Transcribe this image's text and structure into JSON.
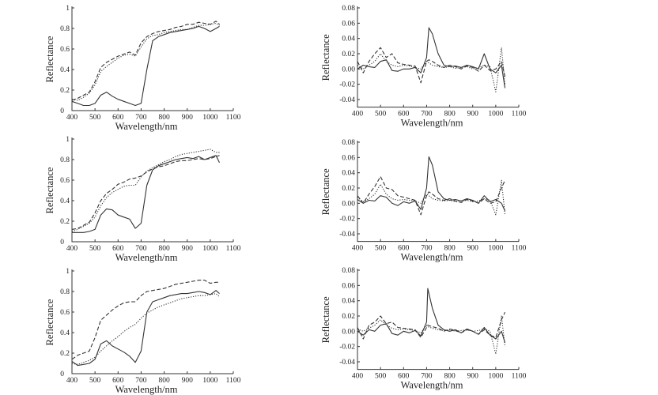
{
  "chart_data": [
    {
      "type": "line",
      "xlabel": "Wavelength/nm",
      "ylabel": "Reflectance",
      "xlim": [
        400,
        1100
      ],
      "ylim": [
        0,
        1
      ],
      "xticks": [
        "400",
        "500",
        "600",
        "700",
        "800",
        "900",
        "1000",
        "1100"
      ],
      "yticks": [
        "0",
        "0.2",
        "0.4",
        "0.6",
        "0.8",
        "1"
      ],
      "grid": false,
      "x": [
        400,
        425,
        450,
        475,
        500,
        525,
        550,
        575,
        600,
        625,
        650,
        675,
        700,
        725,
        750,
        775,
        800,
        825,
        850,
        875,
        900,
        925,
        950,
        975,
        1000,
        1025,
        1040
      ],
      "series": [
        {
          "style": "solid",
          "values": [
            0.09,
            0.07,
            0.05,
            0.05,
            0.07,
            0.15,
            0.18,
            0.14,
            0.11,
            0.09,
            0.07,
            0.05,
            0.07,
            0.4,
            0.68,
            0.72,
            0.74,
            0.76,
            0.77,
            0.78,
            0.79,
            0.8,
            0.82,
            0.8,
            0.77,
            0.8,
            0.82
          ]
        },
        {
          "style": "dashed",
          "values": [
            0.1,
            0.12,
            0.15,
            0.18,
            0.28,
            0.42,
            0.47,
            0.5,
            0.53,
            0.55,
            0.57,
            0.54,
            0.66,
            0.72,
            0.75,
            0.77,
            0.78,
            0.79,
            0.81,
            0.82,
            0.84,
            0.84,
            0.86,
            0.85,
            0.84,
            0.87,
            0.84
          ]
        },
        {
          "style": "dotted",
          "values": [
            0.11,
            0.1,
            0.13,
            0.17,
            0.25,
            0.38,
            0.43,
            0.47,
            0.51,
            0.54,
            0.55,
            0.53,
            0.62,
            0.7,
            0.73,
            0.74,
            0.76,
            0.77,
            0.78,
            0.79,
            0.79,
            0.81,
            0.83,
            0.83,
            0.84,
            0.85,
            0.83
          ]
        }
      ]
    },
    {
      "type": "line",
      "xlabel": "Wavelength/nm",
      "ylabel": "Reflectance",
      "xlim": [
        400,
        1100
      ],
      "ylim": [
        -0.05,
        0.08
      ],
      "xticks": [
        "400",
        "500",
        "600",
        "700",
        "800",
        "900",
        "1000",
        "1100"
      ],
      "yticks": [
        "-0.04",
        "-0.02",
        "0.00",
        "0.02",
        "0.04",
        "0.06",
        "0.08"
      ],
      "grid": false,
      "x": [
        400,
        425,
        450,
        475,
        500,
        525,
        550,
        575,
        600,
        625,
        650,
        675,
        700,
        710,
        725,
        750,
        775,
        800,
        825,
        850,
        875,
        900,
        925,
        950,
        975,
        1000,
        1025,
        1040
      ],
      "series": [
        {
          "style": "solid",
          "values": [
            0.0,
            0.005,
            0.003,
            0.002,
            0.01,
            0.012,
            -0.002,
            -0.003,
            0.0,
            0.0,
            0.002,
            -0.005,
            0.015,
            0.054,
            0.046,
            0.02,
            0.005,
            0.003,
            0.004,
            0.002,
            0.005,
            0.003,
            0.0,
            0.02,
            0.0,
            -0.005,
            0.005,
            -0.025
          ]
        },
        {
          "style": "dashed",
          "values": [
            0.01,
            -0.005,
            0.01,
            0.02,
            0.028,
            0.015,
            0.02,
            0.008,
            0.006,
            0.005,
            0.004,
            -0.018,
            0.01,
            0.012,
            0.01,
            0.005,
            0.002,
            0.005,
            0.003,
            0.0,
            0.004,
            0.002,
            -0.003,
            0.005,
            -0.002,
            0.0,
            0.01,
            -0.01
          ]
        },
        {
          "style": "dotted",
          "values": [
            0.005,
            0.0,
            0.005,
            0.01,
            0.02,
            0.01,
            0.005,
            0.003,
            0.005,
            0.004,
            0.002,
            0.0,
            0.01,
            0.008,
            0.005,
            0.003,
            0.002,
            0.003,
            0.001,
            0.002,
            0.003,
            0.0,
            0.002,
            0.005,
            0.003,
            -0.03,
            0.028,
            -0.02
          ]
        }
      ]
    },
    {
      "type": "line",
      "xlabel": "Wavelength/nm",
      "ylabel": "Reflectance",
      "xlim": [
        400,
        1100
      ],
      "ylim": [
        0,
        1
      ],
      "xticks": [
        "400",
        "500",
        "600",
        "700",
        "800",
        "900",
        "1000",
        "1100"
      ],
      "yticks": [
        "0",
        "0.2",
        "0.4",
        "0.6",
        "0.8",
        "1"
      ],
      "grid": false,
      "x": [
        400,
        425,
        450,
        475,
        500,
        525,
        550,
        575,
        600,
        625,
        650,
        675,
        700,
        725,
        750,
        775,
        800,
        825,
        850,
        875,
        900,
        925,
        950,
        975,
        1000,
        1025,
        1040
      ],
      "series": [
        {
          "style": "solid",
          "values": [
            0.09,
            0.09,
            0.09,
            0.1,
            0.12,
            0.26,
            0.32,
            0.31,
            0.26,
            0.24,
            0.22,
            0.13,
            0.18,
            0.55,
            0.7,
            0.74,
            0.76,
            0.78,
            0.8,
            0.81,
            0.82,
            0.81,
            0.83,
            0.8,
            0.82,
            0.84,
            0.77
          ]
        },
        {
          "style": "dashed",
          "values": [
            0.12,
            0.13,
            0.16,
            0.19,
            0.28,
            0.4,
            0.47,
            0.51,
            0.56,
            0.58,
            0.61,
            0.62,
            0.64,
            0.68,
            0.71,
            0.73,
            0.74,
            0.76,
            0.78,
            0.79,
            0.79,
            0.8,
            0.81,
            0.8,
            0.81,
            0.83,
            0.84
          ]
        },
        {
          "style": "dotted",
          "values": [
            0.1,
            0.12,
            0.15,
            0.18,
            0.24,
            0.35,
            0.43,
            0.48,
            0.51,
            0.54,
            0.55,
            0.55,
            0.63,
            0.69,
            0.72,
            0.75,
            0.78,
            0.8,
            0.83,
            0.85,
            0.86,
            0.87,
            0.88,
            0.89,
            0.9,
            0.87,
            0.87
          ]
        }
      ]
    },
    {
      "type": "line",
      "xlabel": "Wavelength/nm",
      "ylabel": "Reflectance",
      "xlim": [
        400,
        1100
      ],
      "ylim": [
        -0.05,
        0.08
      ],
      "xticks": [
        "400",
        "500",
        "600",
        "700",
        "800",
        "900",
        "1000",
        "1100"
      ],
      "yticks": [
        "-0.04",
        "-0.02",
        "0.00",
        "0.02",
        "0.04",
        "0.06",
        "0.08"
      ],
      "grid": false,
      "x": [
        400,
        425,
        450,
        475,
        500,
        525,
        550,
        575,
        600,
        625,
        650,
        675,
        700,
        710,
        725,
        750,
        775,
        800,
        825,
        850,
        875,
        900,
        925,
        950,
        975,
        1000,
        1025,
        1040
      ],
      "series": [
        {
          "style": "solid",
          "values": [
            0.005,
            0.0,
            0.004,
            0.003,
            0.01,
            0.008,
            0.0,
            -0.003,
            0.002,
            0.0,
            0.003,
            -0.008,
            0.02,
            0.061,
            0.05,
            0.015,
            0.006,
            0.004,
            0.005,
            0.003,
            0.006,
            0.004,
            0.0,
            0.01,
            0.002,
            0.005,
            0.0,
            -0.01
          ]
        },
        {
          "style": "dashed",
          "values": [
            0.01,
            0.0,
            0.012,
            0.022,
            0.035,
            0.02,
            0.018,
            0.01,
            0.008,
            0.006,
            0.004,
            -0.015,
            0.01,
            0.015,
            0.012,
            0.006,
            0.004,
            0.006,
            0.003,
            0.001,
            0.005,
            0.003,
            0.0,
            0.006,
            0.0,
            0.002,
            0.02,
            0.03
          ]
        },
        {
          "style": "dotted",
          "values": [
            0.008,
            0.002,
            0.006,
            0.012,
            0.025,
            0.012,
            0.006,
            0.004,
            0.005,
            0.004,
            0.003,
            0.0,
            0.012,
            0.01,
            0.006,
            0.004,
            0.003,
            0.004,
            0.002,
            0.003,
            0.004,
            0.002,
            0.003,
            0.006,
            0.004,
            -0.015,
            0.03,
            -0.015
          ]
        }
      ]
    },
    {
      "type": "line",
      "xlabel": "Wavelength/nm",
      "ylabel": "Reflectance",
      "xlim": [
        400,
        1100
      ],
      "ylim": [
        0,
        1
      ],
      "xticks": [
        "400",
        "500",
        "600",
        "700",
        "800",
        "900",
        "1000",
        "1100"
      ],
      "yticks": [
        "0",
        "0.2",
        "0.4",
        "0.6",
        "0.8",
        "1"
      ],
      "grid": false,
      "x": [
        400,
        425,
        450,
        475,
        500,
        525,
        550,
        575,
        600,
        625,
        650,
        675,
        700,
        725,
        750,
        775,
        800,
        825,
        850,
        875,
        900,
        925,
        950,
        975,
        1000,
        1025,
        1040
      ],
      "series": [
        {
          "style": "solid",
          "values": [
            0.12,
            0.08,
            0.09,
            0.1,
            0.14,
            0.29,
            0.32,
            0.27,
            0.24,
            0.21,
            0.17,
            0.11,
            0.22,
            0.6,
            0.7,
            0.72,
            0.74,
            0.76,
            0.77,
            0.78,
            0.78,
            0.79,
            0.8,
            0.79,
            0.77,
            0.81,
            0.78
          ]
        },
        {
          "style": "dashed",
          "values": [
            0.14,
            0.18,
            0.2,
            0.22,
            0.35,
            0.52,
            0.57,
            0.62,
            0.66,
            0.69,
            0.7,
            0.7,
            0.76,
            0.8,
            0.81,
            0.82,
            0.83,
            0.85,
            0.87,
            0.88,
            0.89,
            0.9,
            0.91,
            0.91,
            0.88,
            0.89,
            0.89
          ]
        },
        {
          "style": "dotted",
          "values": [
            0.1,
            0.09,
            0.11,
            0.13,
            0.16,
            0.22,
            0.27,
            0.32,
            0.36,
            0.41,
            0.45,
            0.48,
            0.54,
            0.59,
            0.62,
            0.65,
            0.67,
            0.69,
            0.71,
            0.73,
            0.74,
            0.75,
            0.76,
            0.76,
            0.77,
            0.78,
            0.75
          ]
        }
      ]
    },
    {
      "type": "line",
      "xlabel": "Wavelength/nm",
      "ylabel": "Reflectance",
      "xlim": [
        400,
        1100
      ],
      "ylim": [
        -0.05,
        0.08
      ],
      "xticks": [
        "400",
        "500",
        "600",
        "700",
        "800",
        "900",
        "1000",
        "1100"
      ],
      "yticks": [
        "-0.04",
        "-0.02",
        "0.00",
        "0.02",
        "0.04",
        "0.06",
        "0.08"
      ],
      "grid": false,
      "x": [
        400,
        425,
        450,
        475,
        500,
        525,
        550,
        575,
        600,
        625,
        650,
        675,
        700,
        705,
        725,
        750,
        775,
        800,
        825,
        850,
        875,
        900,
        925,
        950,
        975,
        1000,
        1025,
        1040
      ],
      "series": [
        {
          "style": "solid",
          "values": [
            0.0,
            -0.005,
            0.002,
            0.0,
            0.008,
            0.01,
            -0.003,
            -0.005,
            0.0,
            -0.002,
            0.001,
            -0.006,
            0.012,
            0.056,
            0.03,
            0.008,
            0.002,
            0.0,
            0.002,
            -0.002,
            0.003,
            0.0,
            -0.004,
            0.005,
            -0.005,
            -0.01,
            0.0,
            -0.015
          ]
        },
        {
          "style": "dashed",
          "values": [
            0.005,
            -0.01,
            0.008,
            0.012,
            0.02,
            0.01,
            0.012,
            0.005,
            0.004,
            0.003,
            0.002,
            -0.008,
            0.005,
            0.008,
            0.006,
            0.004,
            0.0,
            0.003,
            0.001,
            -0.002,
            0.002,
            0.0,
            -0.004,
            0.002,
            -0.005,
            -0.008,
            0.015,
            0.025
          ]
        },
        {
          "style": "dotted",
          "values": [
            0.003,
            0.0,
            0.004,
            0.008,
            0.015,
            0.008,
            0.004,
            0.002,
            0.003,
            0.002,
            0.001,
            -0.002,
            0.008,
            0.006,
            0.004,
            0.002,
            0.001,
            0.002,
            0.0,
            0.001,
            0.002,
            0.0,
            0.001,
            0.003,
            0.0,
            -0.03,
            0.02,
            -0.02
          ]
        }
      ]
    }
  ]
}
